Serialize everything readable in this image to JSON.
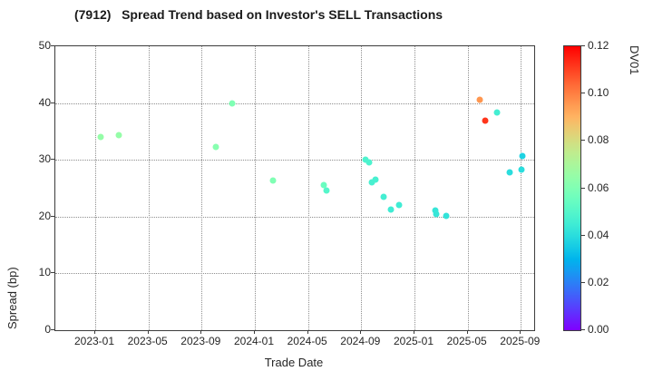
{
  "title": "(7912)   Spread Trend based on Investor's SELL Transactions",
  "colors": {
    "background": "#ffffff",
    "axis": "#3c3c3c",
    "grid": "#8f8f8f",
    "tick_text": "#262626",
    "title_text": "#1a1a1a",
    "colorbar_top": "#ff0000",
    "colorbar_bottom": "#8000ff"
  },
  "chart_data": {
    "type": "scatter",
    "title": "(7912)   Spread Trend based on Investor's SELL Transactions",
    "xlabel": "Trade Date",
    "ylabel": "Spread (bp)",
    "x_tick_labels": [
      "2023-01",
      "2023-05",
      "2023-09",
      "2024-01",
      "2024-05",
      "2024-09",
      "2025-01",
      "2025-05",
      "2025-09"
    ],
    "x_tick_months": [
      0,
      4,
      8,
      12,
      16,
      20,
      24,
      28,
      32
    ],
    "x_domain_months": [
      -3,
      33
    ],
    "y_ticks": [
      0,
      10,
      20,
      30,
      40,
      50
    ],
    "ylim": [
      0,
      50
    ],
    "grid": true,
    "marker_size_px": 7,
    "colorbar": {
      "label": "DV01",
      "min": 0.0,
      "max": 0.12,
      "tick_labels": [
        "0.00",
        "0.02",
        "0.04",
        "0.06",
        "0.08",
        "0.10",
        "0.12"
      ],
      "tick_values": [
        0.0,
        0.02,
        0.04,
        0.06,
        0.08,
        0.1,
        0.12
      ],
      "colormap": "rainbow"
    },
    "points": [
      {
        "date": "2023-01-14",
        "spread": 34.0,
        "dv01": 0.065
      },
      {
        "date": "2023-02-25",
        "spread": 34.3,
        "dv01": 0.065
      },
      {
        "date": "2023-10-04",
        "spread": 32.2,
        "dv01": 0.062
      },
      {
        "date": "2023-11-10",
        "spread": 40.0,
        "dv01": 0.06
      },
      {
        "date": "2024-02-12",
        "spread": 26.4,
        "dv01": 0.06
      },
      {
        "date": "2024-06-07",
        "spread": 25.5,
        "dv01": 0.055
      },
      {
        "date": "2024-06-12",
        "spread": 24.6,
        "dv01": 0.05
      },
      {
        "date": "2024-09-10",
        "spread": 30.0,
        "dv01": 0.048
      },
      {
        "date": "2024-09-18",
        "spread": 29.6,
        "dv01": 0.048
      },
      {
        "date": "2024-09-25",
        "spread": 26.0,
        "dv01": 0.047
      },
      {
        "date": "2024-10-03",
        "spread": 26.5,
        "dv01": 0.047
      },
      {
        "date": "2024-10-22",
        "spread": 23.5,
        "dv01": 0.046
      },
      {
        "date": "2024-11-08",
        "spread": 21.2,
        "dv01": 0.045
      },
      {
        "date": "2024-11-26",
        "spread": 22.0,
        "dv01": 0.045
      },
      {
        "date": "2025-02-19",
        "spread": 21.1,
        "dv01": 0.043
      },
      {
        "date": "2025-02-21",
        "spread": 20.5,
        "dv01": 0.043
      },
      {
        "date": "2025-03-12",
        "spread": 20.1,
        "dv01": 0.042
      },
      {
        "date": "2025-05-29",
        "spread": 40.5,
        "dv01": 0.096
      },
      {
        "date": "2025-06-10",
        "spread": 36.9,
        "dv01": 0.112
      },
      {
        "date": "2025-07-08",
        "spread": 38.3,
        "dv01": 0.046
      },
      {
        "date": "2025-08-06",
        "spread": 27.8,
        "dv01": 0.04
      },
      {
        "date": "2025-09-02",
        "spread": 28.3,
        "dv01": 0.04
      },
      {
        "date": "2025-09-04",
        "spread": 30.6,
        "dv01": 0.037
      }
    ]
  }
}
